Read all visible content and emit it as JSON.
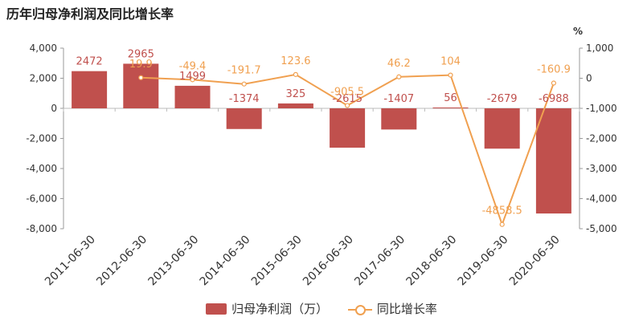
{
  "chart_data": {
    "type": "bar",
    "title": "历年归母净利润及同比增长率",
    "categories": [
      "2011-06-30",
      "2012-06-30",
      "2013-06-30",
      "2014-06-30",
      "2015-06-30",
      "2016-06-30",
      "2017-06-30",
      "2018-06-30",
      "2019-06-30",
      "2020-06-30"
    ],
    "series": [
      {
        "name": "归母净利润（万）",
        "type": "bar",
        "axis": "left",
        "color": "#c0504d",
        "values": [
          2472,
          2965,
          1499,
          -1374,
          325,
          -2615,
          -1407,
          56,
          -2679,
          -6988
        ],
        "labels": [
          "2472",
          "2965",
          "1499",
          "-1374",
          "325",
          "-2615",
          "-1407",
          "56",
          "-2679",
          "-6988"
        ]
      },
      {
        "name": "同比增长率",
        "type": "line",
        "axis": "right",
        "color": "#f0a050",
        "values": [
          null,
          19.9,
          -49.4,
          -191.7,
          123.6,
          -905.5,
          46.2,
          104,
          -4858.5,
          -160.9
        ],
        "labels": [
          null,
          "19.9",
          "-49.4",
          "-191.7",
          "123.6",
          "-905.5",
          "46.2",
          "104",
          "-4858.5",
          "-160.9"
        ]
      }
    ],
    "y_left": {
      "min": -8000,
      "max": 4000,
      "ticks": [
        "4,000",
        "2,000",
        "0",
        "-2,000",
        "-4,000",
        "-6,000",
        "-8,000"
      ]
    },
    "y_right": {
      "min": -5000,
      "max": 1000,
      "unit": "%",
      "ticks": [
        "1,000",
        "0",
        "-1,000",
        "-2,000",
        "-3,000",
        "-4,000",
        "-5,000"
      ]
    },
    "legend_position": "bottom",
    "grid": false
  }
}
